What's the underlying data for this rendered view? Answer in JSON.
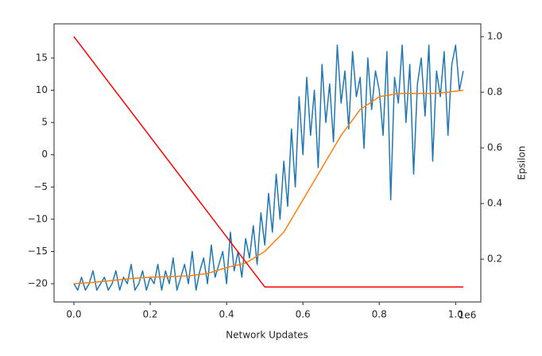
{
  "chart_data": {
    "type": "line",
    "xlabel": "Network Updates",
    "x_offset_label": "1e6",
    "y2label": "Epsilon",
    "xlim": [
      -0.052,
      1.066
    ],
    "ylim": [
      -22.83,
      20.3
    ],
    "y2lim": [
      0.046,
      1.046
    ],
    "xticks": [
      {
        "value": 0,
        "label": "0.0"
      },
      0.2,
      0.4,
      0.6,
      0.8,
      {
        "value": 1,
        "label": "1.0"
      }
    ],
    "yticks": [
      {
        "value": -20,
        "label": "−20"
      },
      {
        "value": -15,
        "label": "−15"
      },
      {
        "value": -10,
        "label": "−10"
      },
      {
        "value": -5,
        "label": "−5"
      },
      0,
      5,
      10,
      15
    ],
    "y2ticks": [
      0.2,
      0.4,
      0.6,
      0.8,
      {
        "value": 1,
        "label": "1.0"
      }
    ],
    "series": [
      {
        "color": "#1f77b4",
        "x": [
          0,
          0.01,
          0.02,
          0.03,
          0.04,
          0.05,
          0.06,
          0.07,
          0.08,
          0.09,
          0.1,
          0.11,
          0.12,
          0.13,
          0.14,
          0.15,
          0.16,
          0.17,
          0.18,
          0.19,
          0.2,
          0.21,
          0.22,
          0.23,
          0.24,
          0.25,
          0.26,
          0.27,
          0.28,
          0.29,
          0.3,
          0.31,
          0.32,
          0.33,
          0.34,
          0.35,
          0.36,
          0.37,
          0.38,
          0.39,
          0.4,
          0.41,
          0.42,
          0.43,
          0.44,
          0.45,
          0.46,
          0.47,
          0.48,
          0.49,
          0.5,
          0.51,
          0.52,
          0.53,
          0.54,
          0.55,
          0.56,
          0.57,
          0.58,
          0.59,
          0.6,
          0.61,
          0.62,
          0.63,
          0.64,
          0.65,
          0.66,
          0.67,
          0.68,
          0.69,
          0.7,
          0.71,
          0.72,
          0.73,
          0.74,
          0.75,
          0.76,
          0.77,
          0.78,
          0.79,
          0.8,
          0.81,
          0.82,
          0.83,
          0.84,
          0.85,
          0.86,
          0.87,
          0.88,
          0.89,
          0.9,
          0.91,
          0.92,
          0.93,
          0.94,
          0.95,
          0.96,
          0.97,
          0.98,
          0.99,
          1,
          1.01,
          1.02
        ],
        "values": [
          -20,
          -21,
          -19,
          -21,
          -20,
          -18,
          -21,
          -20,
          -19,
          -21,
          -20,
          -18,
          -21,
          -19,
          -20,
          -17,
          -21,
          -20,
          -18,
          -21,
          -19,
          -20,
          -17,
          -21,
          -18,
          -20,
          -16,
          -21,
          -19,
          -17,
          -20,
          -15,
          -21,
          -18,
          -16,
          -20,
          -14,
          -19,
          -17,
          -15,
          -20,
          -12,
          -18,
          -15,
          -19,
          -13,
          -16,
          -11,
          -17,
          -9,
          -14,
          -6,
          -12,
          -3,
          -10,
          -1,
          -8,
          4,
          -5,
          9,
          0,
          12,
          3,
          10,
          -2,
          14,
          5,
          11,
          2,
          17,
          8,
          13,
          4,
          16,
          9,
          12,
          1,
          15,
          7,
          13,
          10,
          3,
          16,
          -7,
          12,
          8,
          17,
          5,
          14,
          -3,
          11,
          15,
          6,
          17,
          -1,
          13,
          9,
          16,
          3,
          14,
          17,
          10,
          13
        ]
      },
      {
        "color": "#ff7f0e",
        "x": [
          0,
          0.05,
          0.1,
          0.15,
          0.2,
          0.25,
          0.3,
          0.35,
          0.4,
          0.45,
          0.5,
          0.55,
          0.6,
          0.65,
          0.7,
          0.75,
          0.8,
          0.85,
          0.9,
          0.95,
          1.02
        ],
        "values": [
          -20,
          -19.8,
          -19.5,
          -19.2,
          -19,
          -18.9,
          -18.8,
          -18.4,
          -17.5,
          -16.8,
          -15,
          -12,
          -7,
          -2,
          3,
          7,
          9,
          9.5,
          9.5,
          9.5,
          10
        ]
      },
      {
        "color": "#ff0000",
        "axis": "y2",
        "x": [
          0,
          0.5,
          1.02
        ],
        "values": [
          1,
          0.1,
          0.1
        ]
      }
    ]
  }
}
